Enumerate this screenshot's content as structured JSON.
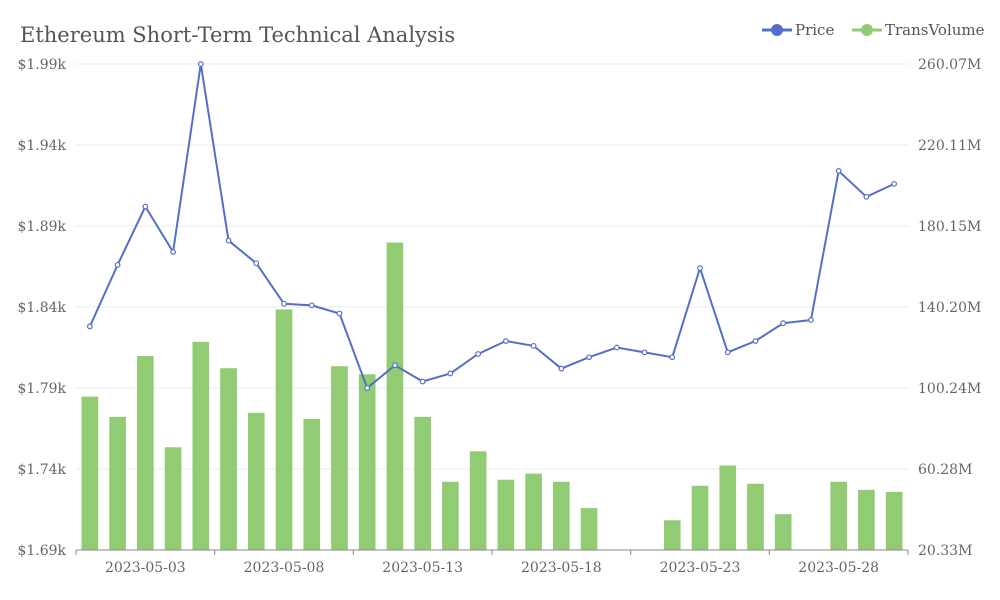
{
  "chart_data": {
    "type": "bar+line",
    "title": "Ethereum Short-Term Technical Analysis",
    "legend": {
      "placement": "top-right",
      "items": [
        {
          "name": "Price",
          "color": "#5470c6",
          "icon": "line-circle-icon"
        },
        {
          "name": "TransVolume",
          "color": "#91cc75",
          "icon": "line-circle-icon"
        }
      ]
    },
    "x": [
      "2023-05-01",
      "2023-05-02",
      "2023-05-03",
      "2023-05-04",
      "2023-05-05",
      "2023-05-06",
      "2023-05-07",
      "2023-05-08",
      "2023-05-09",
      "2023-05-10",
      "2023-05-11",
      "2023-05-12",
      "2023-05-13",
      "2023-05-14",
      "2023-05-15",
      "2023-05-16",
      "2023-05-17",
      "2023-05-18",
      "2023-05-19",
      "2023-05-20",
      "2023-05-21",
      "2023-05-22",
      "2023-05-23",
      "2023-05-24",
      "2023-05-25",
      "2023-05-26",
      "2023-05-27",
      "2023-05-28",
      "2023-05-29",
      "2023-05-30"
    ],
    "x_tick_labels": [
      "2023-05-03",
      "2023-05-08",
      "2023-05-13",
      "2023-05-18",
      "2023-05-23",
      "2023-05-28"
    ],
    "y_left": {
      "ticks": [
        "$1.69k",
        "$1.74k",
        "$1.79k",
        "$1.84k",
        "$1.89k",
        "$1.94k",
        "$1.99k"
      ],
      "range": [
        1690,
        1990
      ]
    },
    "y_right": {
      "ticks": [
        "20.33M",
        "60.28M",
        "100.24M",
        "140.20M",
        "180.15M",
        "220.11M",
        "260.07M"
      ],
      "range": [
        20.33,
        260.07
      ]
    },
    "series": [
      {
        "name": "Price",
        "type": "line",
        "axis": "left",
        "color": "#5470c6",
        "values": [
          1828,
          1866,
          1902,
          1874,
          1990,
          1881,
          1867,
          1842,
          1841,
          1836,
          1790,
          1804,
          1794,
          1799,
          1811,
          1819,
          1816,
          1802,
          1809,
          1815,
          1812,
          1809,
          1864,
          1812,
          1819,
          1830,
          1832,
          1924,
          1908,
          1916
        ]
      },
      {
        "name": "TransVolume",
        "type": "bar",
        "axis": "right",
        "color": "#91cc75",
        "values": [
          96,
          86,
          116,
          71,
          123,
          110,
          88,
          139,
          85,
          111,
          107,
          172,
          86,
          54,
          69,
          55,
          58,
          54,
          41,
          16,
          18,
          35,
          52,
          62,
          53,
          38,
          19,
          54,
          50,
          49
        ]
      }
    ]
  }
}
